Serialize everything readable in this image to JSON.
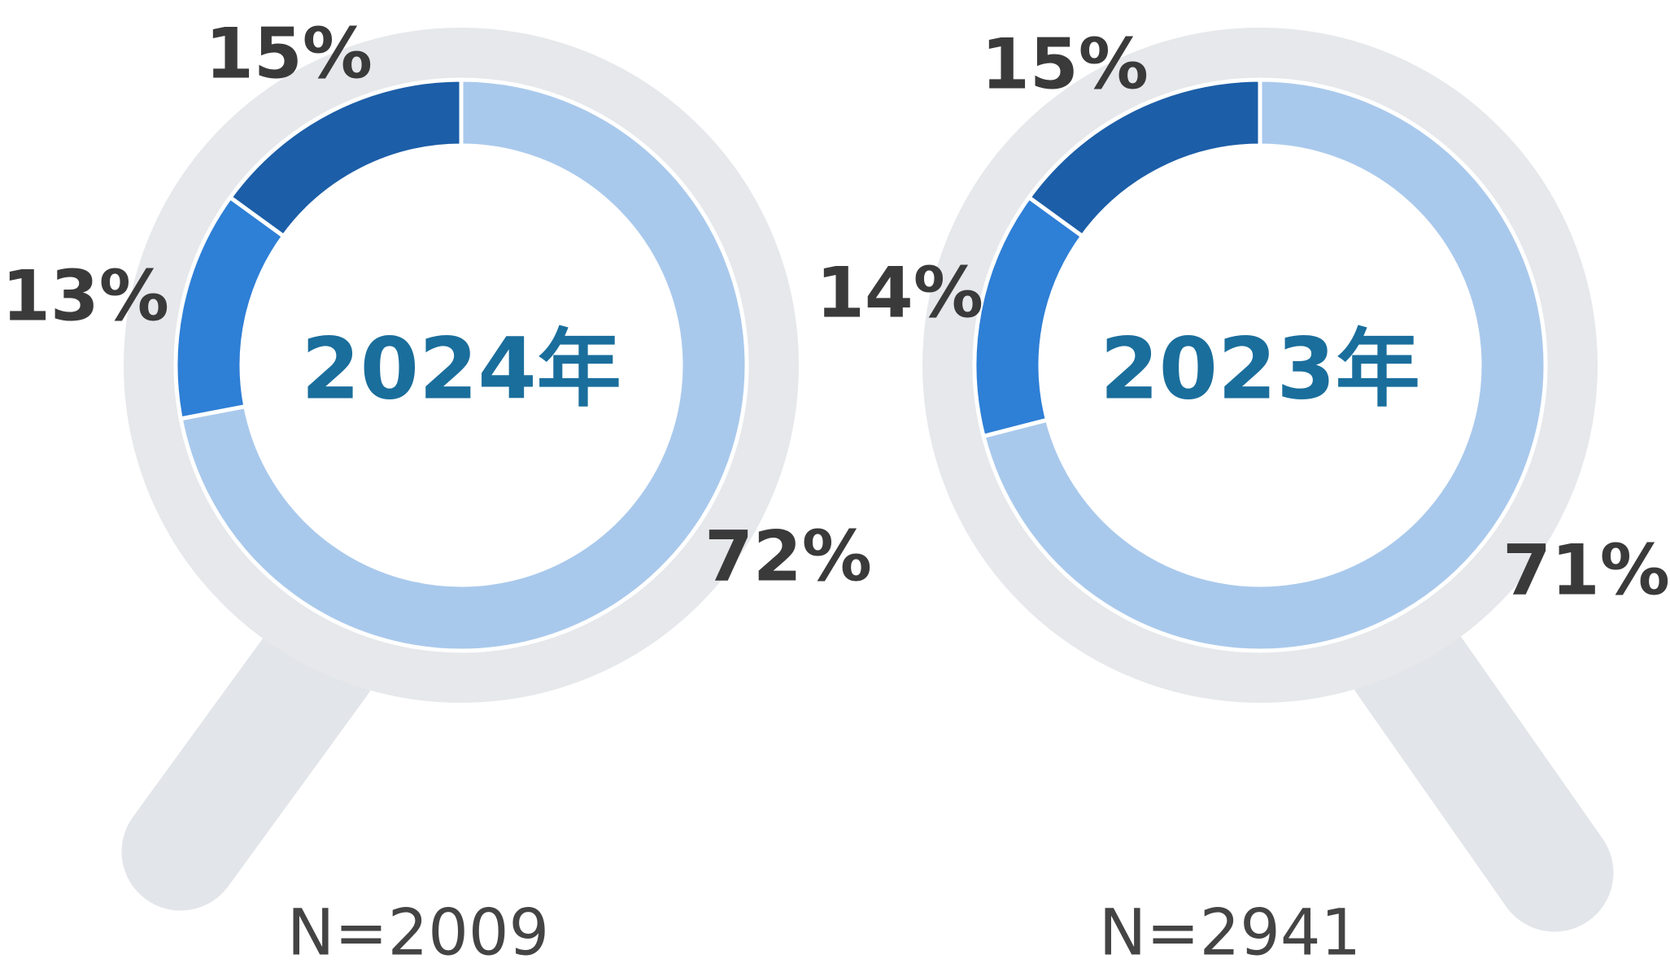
{
  "chart_data": [
    {
      "type": "donut",
      "title": "2024年",
      "subtitle": "N=2009",
      "values": [
        72,
        13,
        15
      ],
      "value_labels": [
        "72%",
        "13%",
        "15%"
      ],
      "colors": [
        "#a9c9ec",
        "#2e7fd6",
        "#1c5ea8"
      ]
    },
    {
      "type": "donut",
      "title": "2023年",
      "subtitle": "N=2941",
      "values": [
        71,
        14,
        15
      ],
      "value_labels": [
        "71%",
        "14%",
        "15%"
      ],
      "colors": [
        "#a9c9ec",
        "#2e7fd6",
        "#1c5ea8"
      ]
    }
  ]
}
